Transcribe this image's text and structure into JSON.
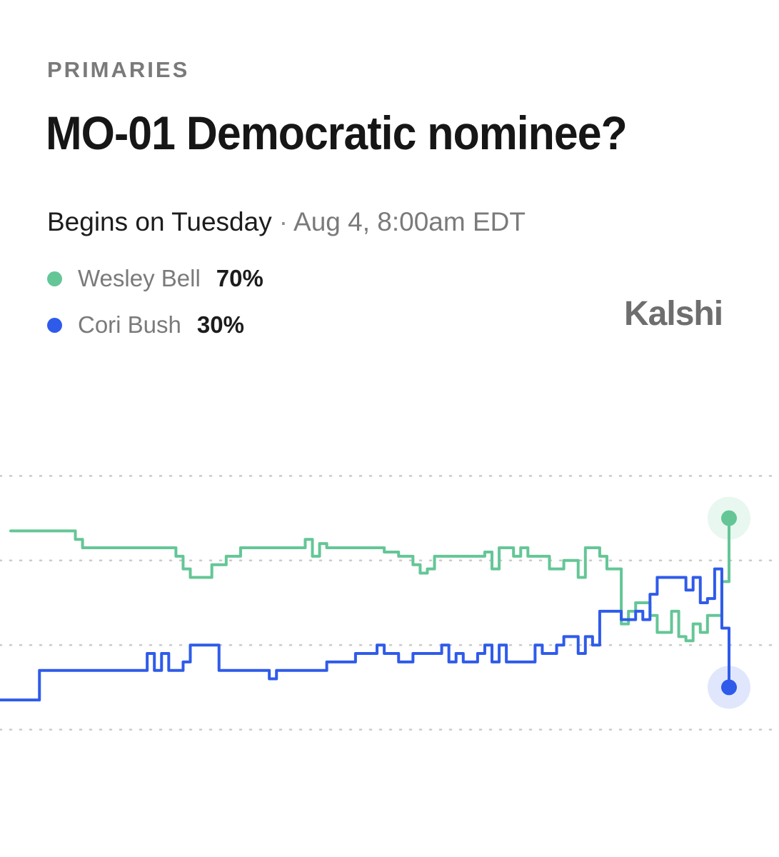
{
  "header": {
    "category": "PRIMARIES",
    "title": "MO-01 Democratic nominee?",
    "begins": "Begins on Tuesday",
    "separator": "·",
    "date": "Aug 4, 8:00am EDT"
  },
  "brand": {
    "name": "Kalshi"
  },
  "legend": [
    {
      "name": "Wesley Bell",
      "pct": "70%",
      "color": "#64c696"
    },
    {
      "name": "Cori Bush",
      "pct": "30%",
      "color": "#2f5bea"
    }
  ],
  "chart_data": {
    "type": "line",
    "title": "MO-01 Democratic nominee?",
    "xlabel": "",
    "ylabel": "",
    "ylim": [
      0,
      100
    ],
    "gridlines": [
      20,
      40,
      60,
      80
    ],
    "grid": true,
    "legend_position": "top-left",
    "x": [
      0,
      1,
      2,
      3,
      4,
      5,
      6,
      7,
      8,
      9,
      10,
      11,
      12,
      13,
      14,
      15,
      16,
      17,
      18,
      19,
      20,
      21,
      22,
      23,
      24,
      25,
      26,
      27,
      28,
      29,
      30,
      31,
      32,
      33,
      34,
      35,
      36,
      37,
      38,
      39,
      40,
      41,
      42,
      43,
      44,
      45,
      46,
      47,
      48,
      49,
      50,
      51,
      52,
      53,
      54,
      55,
      56,
      57,
      58,
      59,
      60,
      61,
      62,
      63,
      64,
      65,
      66,
      67,
      68,
      69,
      70,
      71,
      72,
      73,
      74,
      75,
      76,
      77,
      78,
      79,
      80,
      81,
      82,
      83,
      84,
      85,
      86,
      87,
      88,
      89,
      90,
      91,
      92,
      93,
      94,
      95,
      96,
      97,
      98,
      99,
      100
    ],
    "series": [
      {
        "name": "Wesley Bell",
        "color": "#64c696",
        "final_label": "70%",
        "values": [
          67,
          67,
          67,
          67,
          67,
          67,
          67,
          67,
          67,
          65,
          63,
          63,
          63,
          63,
          63,
          63,
          63,
          63,
          63,
          63,
          63,
          63,
          63,
          61,
          58,
          56,
          56,
          56,
          59,
          59,
          61,
          61,
          63,
          63,
          63,
          63,
          63,
          63,
          63,
          63,
          63,
          65,
          61,
          64,
          63,
          63,
          63,
          63,
          63,
          63,
          63,
          63,
          62,
          62,
          61,
          61,
          59,
          57,
          58,
          61,
          61,
          61,
          61,
          61,
          61,
          61,
          62,
          58,
          63,
          63,
          61,
          63,
          61,
          61,
          61,
          58,
          58,
          60,
          60,
          56,
          63,
          63,
          61,
          58,
          58,
          45,
          48,
          50,
          50,
          47,
          43,
          43,
          48,
          42,
          41,
          45,
          43,
          47,
          47,
          55,
          70
        ]
      },
      {
        "name": "Cori Bush",
        "color": "#2f5bea",
        "final_label": "30%",
        "values": [
          27,
          27,
          27,
          27,
          34,
          34,
          34,
          34,
          34,
          34,
          34,
          34,
          34,
          34,
          34,
          34,
          34,
          34,
          34,
          38,
          34,
          38,
          34,
          34,
          36,
          40,
          40,
          40,
          40,
          34,
          34,
          34,
          34,
          34,
          34,
          34,
          32,
          34,
          34,
          34,
          34,
          34,
          34,
          34,
          36,
          36,
          36,
          36,
          38,
          38,
          38,
          40,
          38,
          38,
          36,
          36,
          38,
          38,
          38,
          38,
          40,
          36,
          38,
          36,
          36,
          38,
          40,
          36,
          40,
          36,
          36,
          36,
          36,
          40,
          38,
          38,
          40,
          42,
          42,
          38,
          42,
          40,
          48,
          48,
          48,
          46,
          46,
          48,
          46,
          52,
          56,
          56,
          56,
          56,
          53,
          56,
          50,
          51,
          58,
          44,
          30
        ]
      }
    ]
  }
}
